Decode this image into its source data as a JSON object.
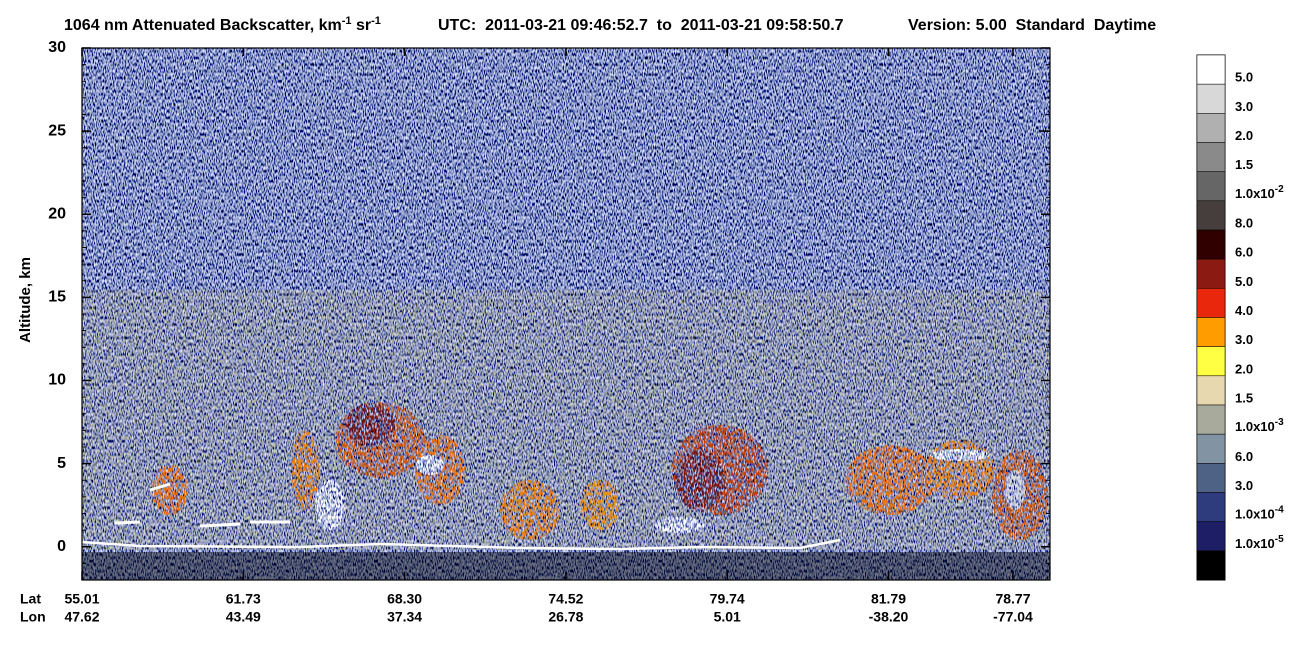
{
  "chart_data": {
    "type": "curtain",
    "title": [
      "1064 nm Attenuated Backscatter, km",
      {
        "sup": "-1"
      },
      " sr",
      {
        "sup": "-1"
      }
    ],
    "subtitle": "UTC:  2011-03-21 09:46:52.7  to  2011-03-21 09:58:50.7",
    "version": "Version: 5.00  Standard  Daytime",
    "ylabel": "Altitude, km",
    "ylim": [
      -2,
      30
    ],
    "yticks": [
      0,
      5,
      10,
      15,
      20,
      25,
      30
    ],
    "x_rows": [
      "Lat",
      "Lon"
    ],
    "lat": [
      "55.01",
      "61.73",
      "68.30",
      "74.52",
      "79.74",
      "81.79",
      "78.77"
    ],
    "lon": [
      "47.62",
      "43.49",
      "37.34",
      "26.78",
      "5.01",
      "-38.20",
      "-77.04"
    ],
    "colorbar": {
      "colors": [
        "#ffffff",
        "#d8d8d8",
        "#b0b0b0",
        "#8a8a8a",
        "#666666",
        "#463e3c",
        "#300000",
        "#8b1a12",
        "#e8270c",
        "#ff9c00",
        "#ffff44",
        "#e8d8b0",
        "#a8aa9c",
        "#8294a4",
        "#4e6286",
        "#2e3c7e",
        "#1e1e66",
        "#000000"
      ],
      "labels": [
        "5.0",
        "3.0",
        "2.0",
        "1.5",
        {
          "base": "1.0x10",
          "exp": "-2"
        },
        "8.0",
        "6.0",
        "5.0",
        "4.0",
        "3.0",
        "2.0",
        "1.5",
        {
          "base": "1.0x10",
          "exp": "-3"
        },
        "6.0",
        "3.0",
        {
          "base": "1.0x10",
          "exp": "-4"
        },
        {
          "base": "1.0x10",
          "exp": "-5"
        }
      ]
    }
  }
}
